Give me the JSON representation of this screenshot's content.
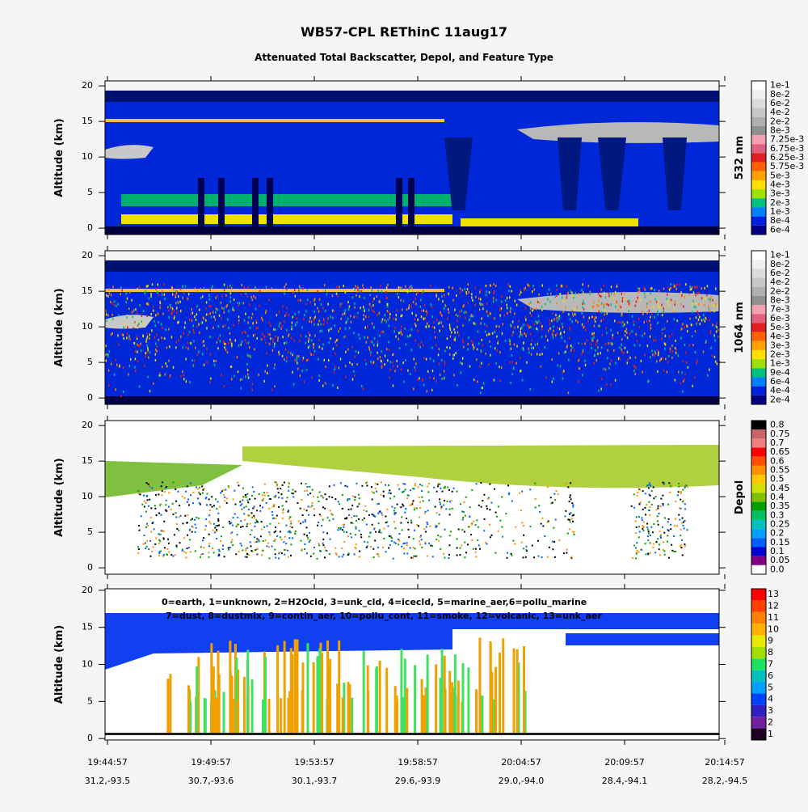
{
  "title": "WB57-CPL REThinC 11aug17",
  "subtitle": "Attenuated Total Backscatter, Depol, and Feature Type",
  "x_ticks": [
    {
      "time": "19:44:57",
      "position": "31.2,-93.5"
    },
    {
      "time": "19:49:57",
      "position": "30.7,-93.6"
    },
    {
      "time": "19:53:57",
      "position": "30.1,-93.7"
    },
    {
      "time": "19:58:57",
      "position": "29.6,-93.9"
    },
    {
      "time": "20:04:57",
      "position": "29.0,-94.0"
    },
    {
      "time": "20:09:57",
      "position": "28.4,-94.1"
    },
    {
      "time": "20:14:57",
      "position": "28.2,-94.5"
    }
  ],
  "panels": [
    {
      "ylabel": "Altitude (km)",
      "ylim": [
        -0.9,
        20.7
      ],
      "yticks": [
        0,
        5,
        10,
        15,
        20
      ],
      "colorbar_label": "532 nm",
      "colorbar_ticks": [
        "1e-1",
        "8e-2",
        "6e-2",
        "4e-2",
        "2e-2",
        "8e-3",
        "7.25e-3",
        "6.75e-3",
        "6.25e-3",
        "5.75e-3",
        "5e-3",
        "4e-3",
        "3e-3",
        "2e-3",
        "1e-3",
        "8e-4",
        "6e-4"
      ],
      "colorbar_colors": [
        "#ffffff",
        "#f0f0f0",
        "#dcdcdc",
        "#c8c8c8",
        "#b0b0b0",
        "#909090",
        "#f4a0b0",
        "#e06080",
        "#e02020",
        "#ff6000",
        "#ffa000",
        "#ffe000",
        "#a0e000",
        "#00c080",
        "#0080ff",
        "#0020e0",
        "#000080"
      ]
    },
    {
      "ylabel": "Altitude (km)",
      "ylim": [
        -0.9,
        20.7
      ],
      "yticks": [
        0,
        5,
        10,
        15,
        20
      ],
      "colorbar_label": "1064 nm",
      "colorbar_ticks": [
        "1e-1",
        "8e-2",
        "6e-2",
        "4e-2",
        "2e-2",
        "8e-3",
        "7e-3",
        "6e-3",
        "5e-3",
        "4e-3",
        "3e-3",
        "2e-3",
        "1e-3",
        "9e-4",
        "6e-4",
        "4e-4",
        "2e-4"
      ],
      "colorbar_colors": [
        "#ffffff",
        "#f0f0f0",
        "#dcdcdc",
        "#c8c8c8",
        "#b0b0b0",
        "#909090",
        "#f4a0b0",
        "#e06080",
        "#e02020",
        "#ff6000",
        "#ffa000",
        "#ffe000",
        "#a0e000",
        "#00c080",
        "#0080ff",
        "#0020e0",
        "#000080"
      ]
    },
    {
      "ylabel": "Altitude (km)",
      "ylim": [
        -0.9,
        20.7
      ],
      "yticks": [
        0,
        5,
        10,
        15,
        20
      ],
      "colorbar_label": "Depol",
      "colorbar_ticks": [
        "0.8",
        "0.75",
        "0.7",
        "0.65",
        "0.6",
        "0.55",
        "0.5",
        "0.45",
        "0.4",
        "0.35",
        "0.3",
        "0.25",
        "0.2",
        "0.15",
        "0.1",
        "0.05",
        "0.0"
      ],
      "colorbar_colors": [
        "#000000",
        "#c86464",
        "#f08080",
        "#ff0000",
        "#ff5000",
        "#ff9000",
        "#ffc800",
        "#d0e000",
        "#80c000",
        "#00a000",
        "#00c060",
        "#00c0c0",
        "#00a0ff",
        "#0060ff",
        "#0000d0",
        "#800080",
        "#ffffff"
      ]
    },
    {
      "ylabel": "Altitude (km)",
      "ylim": [
        -0.2,
        20.2
      ],
      "yticks": [
        0,
        5,
        10,
        15,
        20
      ],
      "legend_lines": [
        "0=earth, 1=unknown, 2=H2Ocld, 3=unk_cld, 4=icecld, 5=marine_aer,6=pollu_marine",
        "7=dust, 8=dustmix, 9=contin_aer, 10=pollu_cont, 11=smoke, 12=volcanic, 13=unk_aer"
      ],
      "colorbar_ticks": [
        13,
        12,
        11,
        10,
        9,
        8,
        7,
        6,
        5,
        4,
        3,
        2,
        1
      ],
      "colorbar_colors": [
        "#ff0000",
        "#ff4000",
        "#ff8000",
        "#ffb000",
        "#e8e800",
        "#a0e000",
        "#20e060",
        "#00c0c0",
        "#00a0ff",
        "#0040ff",
        "#3020c0",
        "#7020a0",
        "#200020"
      ]
    }
  ]
}
